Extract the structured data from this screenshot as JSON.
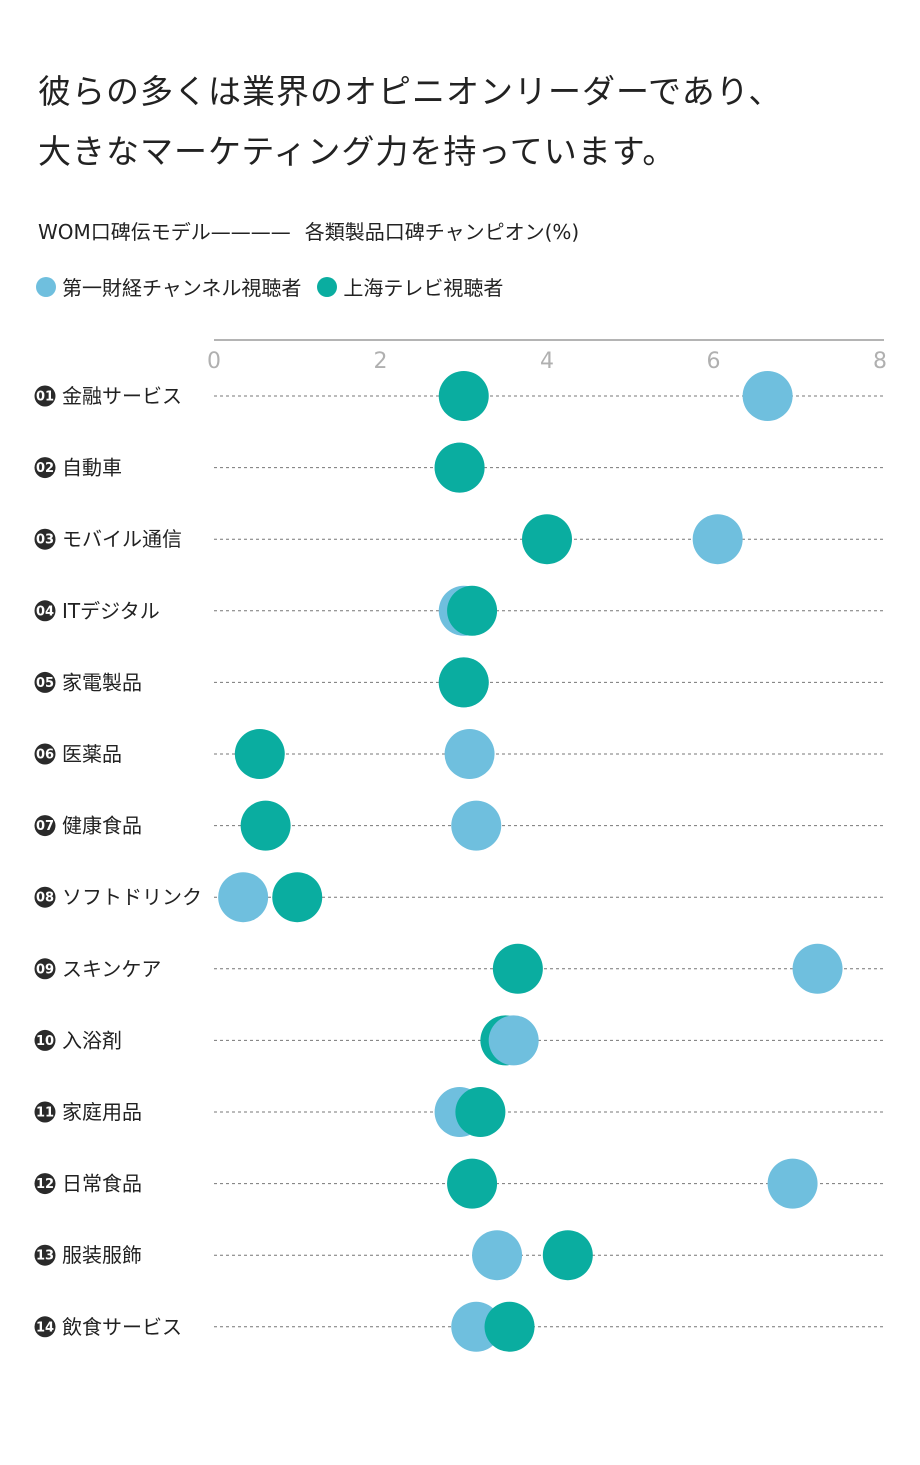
{
  "heading": {
    "line1": "彼らの多くは業界のオピニオンリーダーであり、",
    "line2": "大きなマーケティング力を持っています。"
  },
  "subtitle": {
    "left": "WOM口碑伝モデル————",
    "right": "各類製品口碑チャンピオン(%)"
  },
  "legend": [
    {
      "label": "第一財経チャンネル視聴者",
      "color": "#6fbfde"
    },
    {
      "label": "上海テレビ視聴者",
      "color": "#0aada0"
    }
  ],
  "chart_data": {
    "type": "dot",
    "xlim": [
      0,
      8
    ],
    "ticks": [
      "0",
      "2",
      "4",
      "6",
      "8"
    ],
    "grid": "dashed horizontal",
    "rows": [
      {
        "num": "01",
        "label": "金融サービス"
      },
      {
        "num": "02",
        "label": "自動車"
      },
      {
        "num": "03",
        "label": "モバイル通信"
      },
      {
        "num": "04",
        "label": "ITデジタル"
      },
      {
        "num": "05",
        "label": "家電製品"
      },
      {
        "num": "06",
        "label": "医薬品"
      },
      {
        "num": "07",
        "label": "健康食品"
      },
      {
        "num": "08",
        "label": "ソフトドリンク"
      },
      {
        "num": "09",
        "label": "スキンケア"
      },
      {
        "num": "10",
        "label": "入浴剤"
      },
      {
        "num": "11",
        "label": "家庭用品"
      },
      {
        "num": "12",
        "label": "日常食品"
      },
      {
        "num": "13",
        "label": "服装服飾"
      },
      {
        "num": "14",
        "label": "飲食サービス"
      }
    ],
    "series": [
      {
        "name": "第一財経チャンネル視聴者",
        "color": "#6fbfde",
        "values": [
          6.65,
          2.95,
          6.05,
          3.0,
          3.0,
          3.07,
          3.15,
          0.35,
          7.25,
          3.6,
          2.95,
          6.95,
          3.4,
          3.15
        ]
      },
      {
        "name": "上海テレビ視聴者",
        "color": "#0aada0",
        "values": [
          3.0,
          2.95,
          4.0,
          3.1,
          3.0,
          0.55,
          0.62,
          1.0,
          3.65,
          3.5,
          3.2,
          3.1,
          4.25,
          3.55
        ]
      }
    ]
  }
}
